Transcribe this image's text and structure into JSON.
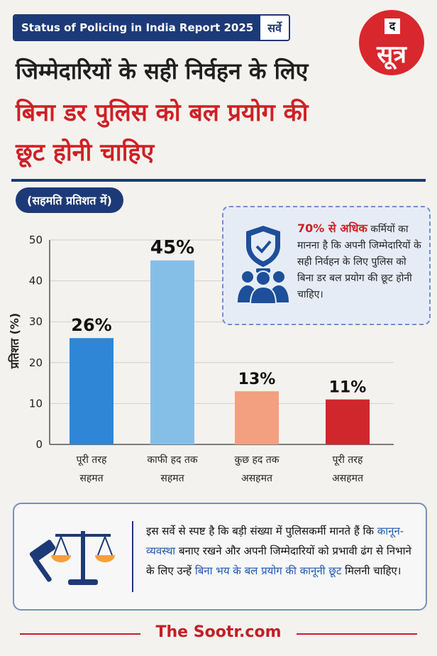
{
  "top_badge": {
    "report": "Status of Policing in India Report 2025",
    "tag": "सर्वे"
  },
  "logo": {
    "small": "द",
    "main": "सूत्र"
  },
  "headline": {
    "line1": "जिम्मेदारियों के सही निर्वहन के लिए",
    "line2": "बिना डर पुलिस को बल प्रयोग की",
    "line3": "छूट होनी चाहिए"
  },
  "unit_pill": "(सहमति प्रतिशत में)",
  "info_card": {
    "highlight": "70% से अधिक",
    "text": "कर्मियों का मानना है कि अपनी जिम्मेदारियों के सही निर्वहन के लिए पुलिस को बिना डर बल प्रयोग की छूट होनी चाहिए।",
    "icon": "police-shield-icon"
  },
  "chart_data": {
    "type": "bar",
    "ylabel": "प्रतिशत (%)",
    "ylim": [
      0,
      50
    ],
    "yticks": [
      "0",
      "10",
      "20",
      "30",
      "40",
      "50"
    ],
    "categories": [
      [
        "पूरी तरह",
        "सहमत"
      ],
      [
        "काफी हद तक",
        "सहमत"
      ],
      [
        "कुछ हद तक",
        "असहमत"
      ],
      [
        "पूरी तरह",
        "असहमत"
      ]
    ],
    "values": [
      26,
      45,
      13,
      11
    ],
    "data_labels": [
      "26%",
      "45%",
      "13%",
      "11%"
    ],
    "colors": [
      "#2f86d6",
      "#85bfe8",
      "#f2a07f",
      "#d0272d"
    ]
  },
  "bottom_card": {
    "icon": "scales-of-justice-gavel-icon",
    "text_1": "इस सर्वे से स्पष्ट है कि बड़ी संख्या में पुलिसकर्मी मानते हैं कि",
    "text_2_blue": "कानून-व्यवस्था",
    "text_3": " बनाए रखने और अपनी जिम्मेदारियों को प्रभावी ढंग से निभाने के लिए उन्हें ",
    "text_4_blue": "बिना भय के बल प्रयोग की कानूनी छूट",
    "text_5": " मिलनी चाहिए।"
  },
  "footer": "The Sootr.com"
}
